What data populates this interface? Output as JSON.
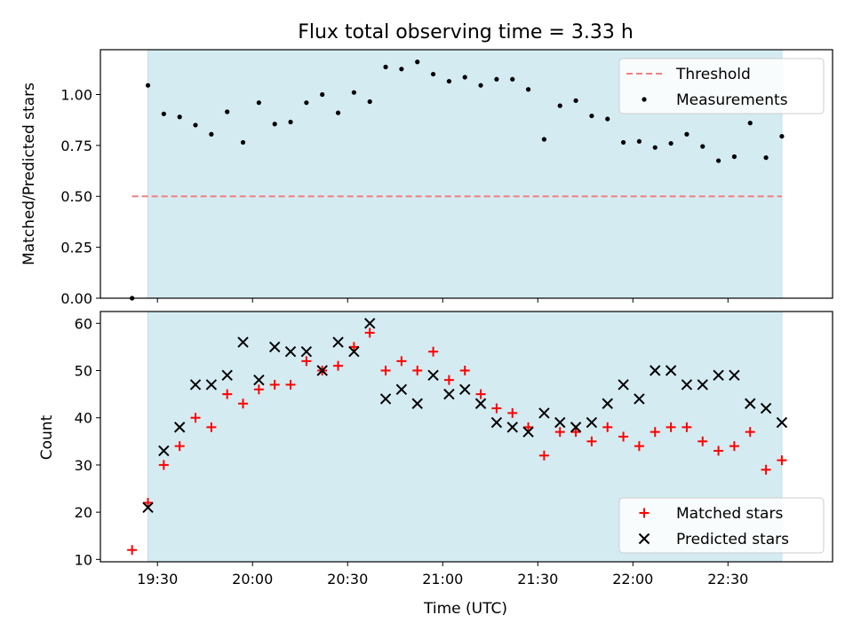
{
  "title": "Flux total observing time = 3.33 h",
  "colors": {
    "shade": "#d4ebf1",
    "threshold": "#f08080",
    "matched": "#ff0000",
    "predicted": "#000000",
    "measurement": "#000000"
  },
  "chart_data": [
    {
      "type": "scatter",
      "ylabel": "Matched/Predicted stars",
      "xlabel": "",
      "x_unit": "UTC time",
      "xlim": [
        "19:12",
        "23:03"
      ],
      "ylim": [
        0,
        1.22
      ],
      "yticks": [
        0.0,
        0.25,
        0.5,
        0.75,
        1.0
      ],
      "ytick_labels": [
        "0.00",
        "0.25",
        "0.50",
        "0.75",
        "1.00"
      ],
      "shaded_span": [
        "19:27",
        "22:47"
      ],
      "legend": {
        "placement": "top-right",
        "entries": [
          "Threshold",
          "Measurements"
        ]
      },
      "series": [
        {
          "name": "Threshold",
          "kind": "dashed-line",
          "x": [
            "19:22",
            "22:47"
          ],
          "y": [
            0.5,
            0.5
          ]
        },
        {
          "name": "Measurements",
          "kind": "dot",
          "x": [
            "19:22",
            "19:27",
            "19:32",
            "19:37",
            "19:42",
            "19:47",
            "19:52",
            "19:57",
            "20:02",
            "20:07",
            "20:12",
            "20:17",
            "20:22",
            "20:27",
            "20:32",
            "20:37",
            "20:42",
            "20:47",
            "20:52",
            "20:57",
            "21:02",
            "21:07",
            "21:12",
            "21:17",
            "21:22",
            "21:27",
            "21:32",
            "21:37",
            "21:42",
            "21:47",
            "21:52",
            "21:57",
            "22:02",
            "22:07",
            "22:12",
            "22:17",
            "22:22",
            "22:27",
            "22:32",
            "22:37",
            "22:42",
            "22:47"
          ],
          "y": [
            0.0,
            1.045,
            0.905,
            0.89,
            0.85,
            0.805,
            0.915,
            0.765,
            0.96,
            0.855,
            0.865,
            0.96,
            1.0,
            0.91,
            1.01,
            0.965,
            1.135,
            1.125,
            1.16,
            1.1,
            1.065,
            1.085,
            1.045,
            1.075,
            1.075,
            1.025,
            0.78,
            0.945,
            0.97,
            0.895,
            0.88,
            0.765,
            0.77,
            0.74,
            0.76,
            0.805,
            0.745,
            0.675,
            0.695,
            0.86,
            0.69,
            0.795
          ]
        }
      ]
    },
    {
      "type": "scatter",
      "ylabel": "Count",
      "xlabel": "Time (UTC)",
      "x_unit": "UTC time",
      "xlim": [
        "19:12",
        "23:03"
      ],
      "ylim": [
        9.5,
        62.5
      ],
      "yticks": [
        10,
        20,
        30,
        40,
        50,
        60
      ],
      "ytick_labels": [
        "10",
        "20",
        "30",
        "40",
        "50",
        "60"
      ],
      "xticks": [
        "19:30",
        "20:00",
        "20:30",
        "21:00",
        "21:30",
        "22:00",
        "22:30"
      ],
      "xtick_labels": [
        "19:30",
        "20:00",
        "20:30",
        "21:00",
        "21:30",
        "22:00",
        "22:30"
      ],
      "shaded_span": [
        "19:27",
        "22:47"
      ],
      "legend": {
        "placement": "bottom-right",
        "entries": [
          "Matched stars",
          "Predicted stars"
        ]
      },
      "series": [
        {
          "name": "Matched stars",
          "marker": "plus",
          "x": [
            "19:22",
            "19:27",
            "19:32",
            "19:37",
            "19:42",
            "19:47",
            "19:52",
            "19:57",
            "20:02",
            "20:07",
            "20:12",
            "20:17",
            "20:22",
            "20:27",
            "20:32",
            "20:37",
            "20:42",
            "20:47",
            "20:52",
            "20:57",
            "21:02",
            "21:07",
            "21:12",
            "21:17",
            "21:22",
            "21:27",
            "21:32",
            "21:37",
            "21:42",
            "21:47",
            "21:52",
            "21:57",
            "22:02",
            "22:07",
            "22:12",
            "22:17",
            "22:22",
            "22:27",
            "22:32",
            "22:37",
            "22:42",
            "22:47"
          ],
          "y": [
            12,
            22,
            30,
            34,
            40,
            38,
            45,
            43,
            46,
            47,
            47,
            52,
            50,
            51,
            55,
            58,
            50,
            52,
            50,
            54,
            48,
            50,
            45,
            42,
            41,
            38,
            32,
            37,
            37,
            35,
            38,
            36,
            34,
            37,
            38,
            38,
            35,
            33,
            34,
            37,
            29,
            31
          ]
        },
        {
          "name": "Predicted stars",
          "marker": "x",
          "x": [
            "19:27",
            "19:32",
            "19:37",
            "19:42",
            "19:47",
            "19:52",
            "19:57",
            "20:02",
            "20:07",
            "20:12",
            "20:17",
            "20:22",
            "20:27",
            "20:32",
            "20:37",
            "20:42",
            "20:47",
            "20:52",
            "20:57",
            "21:02",
            "21:07",
            "21:12",
            "21:17",
            "21:22",
            "21:27",
            "21:32",
            "21:37",
            "21:42",
            "21:47",
            "21:52",
            "21:57",
            "22:02",
            "22:07",
            "22:12",
            "22:17",
            "22:22",
            "22:27",
            "22:32",
            "22:37",
            "22:42",
            "22:47"
          ],
          "y": [
            21,
            33,
            38,
            47,
            47,
            49,
            56,
            48,
            55,
            54,
            54,
            50,
            56,
            54,
            60,
            44,
            46,
            43,
            49,
            45,
            46,
            43,
            39,
            38,
            37,
            41,
            39,
            38,
            39,
            43,
            47,
            44,
            50,
            50,
            47,
            47,
            49,
            49,
            43,
            42,
            39
          ]
        }
      ]
    }
  ]
}
